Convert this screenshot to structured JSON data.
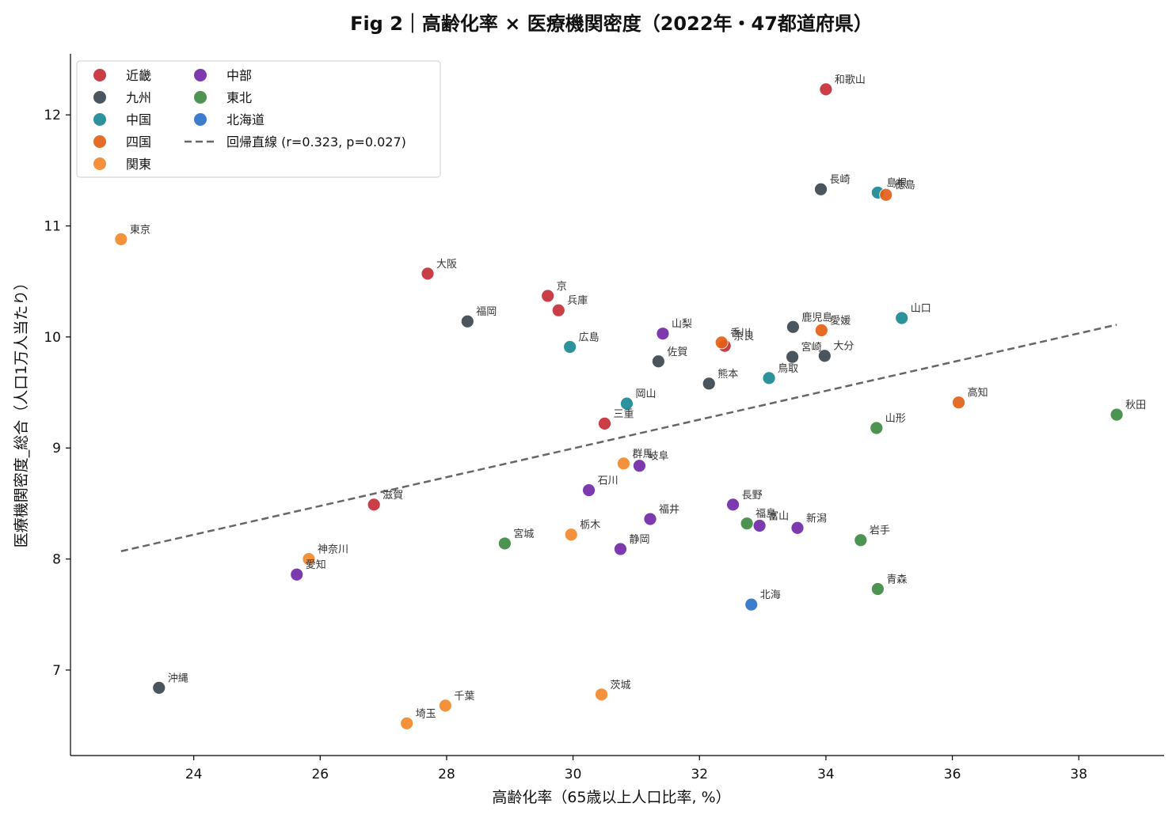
{
  "chart_data": {
    "type": "scatter",
    "title": "Fig 2｜高齢化率 × 医療機関密度（2022年・47都道府県）",
    "xlabel": "高齢化率（65歳以上人口比率, %）",
    "ylabel": "医療機関密度_総合（人口1万人当たり）",
    "xlim": [
      22.05,
      39.35
    ],
    "ylim": [
      6.23,
      12.55
    ],
    "x_ticks": [
      24,
      26,
      28,
      30,
      32,
      34,
      36,
      38
    ],
    "y_ticks": [
      7,
      8,
      9,
      10,
      11,
      12
    ],
    "grid": false,
    "legend_position": "top-left",
    "series": [
      {
        "name": "近畿",
        "color": "#c62f37",
        "points": [
          {
            "label": "和歌山",
            "x": 34.0,
            "y": 12.23
          },
          {
            "label": "大阪",
            "x": 27.7,
            "y": 10.57
          },
          {
            "label": "京",
            "x": 29.6,
            "y": 10.37
          },
          {
            "label": "兵庫",
            "x": 29.77,
            "y": 10.24
          },
          {
            "label": "奈良",
            "x": 32.4,
            "y": 9.92
          },
          {
            "label": "三重",
            "x": 30.5,
            "y": 9.22
          },
          {
            "label": "滋賀",
            "x": 26.85,
            "y": 8.49
          }
        ]
      },
      {
        "name": "九州",
        "color": "#3c4650",
        "points": [
          {
            "label": "長崎",
            "x": 33.92,
            "y": 11.33
          },
          {
            "label": "福岡",
            "x": 28.33,
            "y": 10.14
          },
          {
            "label": "鹿児島",
            "x": 33.48,
            "y": 10.09
          },
          {
            "label": "宮崎",
            "x": 33.47,
            "y": 9.82
          },
          {
            "label": "大分",
            "x": 33.98,
            "y": 9.83
          },
          {
            "label": "佐賀",
            "x": 31.35,
            "y": 9.78
          },
          {
            "label": "熊本",
            "x": 32.15,
            "y": 9.58
          },
          {
            "label": "沖縄",
            "x": 23.45,
            "y": 6.84
          }
        ]
      },
      {
        "name": "中国",
        "color": "#1a8a95",
        "points": [
          {
            "label": "島根",
            "x": 34.82,
            "y": 11.3
          },
          {
            "label": "山口",
            "x": 35.2,
            "y": 10.17
          },
          {
            "label": "広島",
            "x": 29.95,
            "y": 9.91
          },
          {
            "label": "鳥取",
            "x": 33.1,
            "y": 9.63
          },
          {
            "label": "岡山",
            "x": 30.85,
            "y": 9.4
          }
        ]
      },
      {
        "name": "四国",
        "color": "#e45f17",
        "points": [
          {
            "label": "徳島",
            "x": 34.95,
            "y": 11.28
          },
          {
            "label": "愛媛",
            "x": 33.93,
            "y": 10.06
          },
          {
            "label": "香川",
            "x": 32.35,
            "y": 9.95
          },
          {
            "label": "高知",
            "x": 36.1,
            "y": 9.41
          }
        ]
      },
      {
        "name": "関東",
        "color": "#f3882c",
        "points": [
          {
            "label": "東京",
            "x": 22.85,
            "y": 10.88
          },
          {
            "label": "群馬",
            "x": 30.8,
            "y": 8.86
          },
          {
            "label": "栃木",
            "x": 29.97,
            "y": 8.22
          },
          {
            "label": "神奈川",
            "x": 25.82,
            "y": 8.0
          },
          {
            "label": "茨城",
            "x": 30.45,
            "y": 6.78
          },
          {
            "label": "千葉",
            "x": 27.98,
            "y": 6.68
          },
          {
            "label": "埼玉",
            "x": 27.37,
            "y": 6.52
          }
        ]
      },
      {
        "name": "中部",
        "color": "#7129a7",
        "points": [
          {
            "label": "山梨",
            "x": 31.42,
            "y": 10.03
          },
          {
            "label": "岐阜",
            "x": 31.05,
            "y": 8.84
          },
          {
            "label": "石川",
            "x": 30.25,
            "y": 8.62
          },
          {
            "label": "長野",
            "x": 32.53,
            "y": 8.49
          },
          {
            "label": "福井",
            "x": 31.22,
            "y": 8.36
          },
          {
            "label": "富山",
            "x": 32.95,
            "y": 8.3
          },
          {
            "label": "新潟",
            "x": 33.55,
            "y": 8.28
          },
          {
            "label": "静岡",
            "x": 30.75,
            "y": 8.09
          },
          {
            "label": "愛知",
            "x": 25.63,
            "y": 7.86
          }
        ]
      },
      {
        "name": "東北",
        "color": "#3e8a42",
        "points": [
          {
            "label": "秋田",
            "x": 38.6,
            "y": 9.3
          },
          {
            "label": "山形",
            "x": 34.8,
            "y": 9.18
          },
          {
            "label": "福島",
            "x": 32.75,
            "y": 8.32
          },
          {
            "label": "岩手",
            "x": 34.55,
            "y": 8.17
          },
          {
            "label": "宮城",
            "x": 28.92,
            "y": 8.14
          },
          {
            "label": "青森",
            "x": 34.82,
            "y": 7.73
          }
        ]
      },
      {
        "name": "北海道",
        "color": "#2b73c8",
        "points": [
          {
            "label": "北海",
            "x": 32.82,
            "y": 7.59
          }
        ]
      }
    ],
    "regression": {
      "name": "回帰直線 (r=0.323, p=0.027)",
      "color": "#666666",
      "x": [
        22.85,
        38.6
      ],
      "y": [
        8.07,
        10.11
      ]
    }
  }
}
